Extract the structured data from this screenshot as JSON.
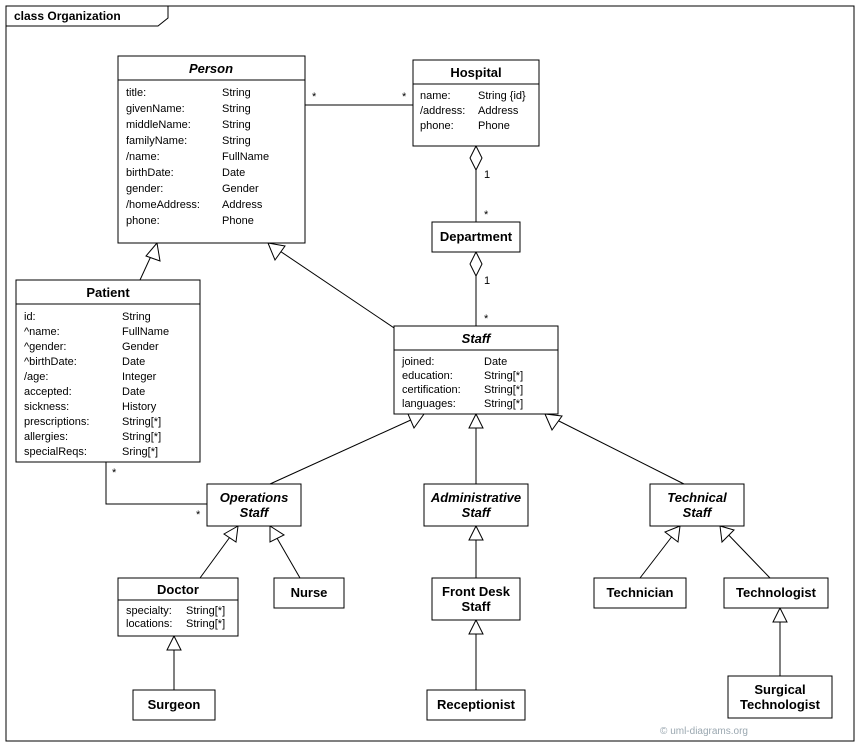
{
  "diagram": {
    "type": "uml-class-diagram",
    "frame_label": "class Organization",
    "background_color": "#ffffff",
    "stroke_color": "#000000",
    "text_color": "#000000",
    "watermark": "© uml-diagrams.org",
    "watermark_color": "#9aa7b0",
    "title_fontsize": 13,
    "attr_fontsize": 11,
    "mult_fontsize": 11,
    "classes": {
      "Person": {
        "name": "Person",
        "abstract": true,
        "attrs": [
          [
            "title:",
            "String"
          ],
          [
            "givenName:",
            "String"
          ],
          [
            "middleName:",
            "String"
          ],
          [
            "familyName:",
            "String"
          ],
          [
            "/name:",
            "FullName"
          ],
          [
            "birthDate:",
            "Date"
          ],
          [
            "gender:",
            "Gender"
          ],
          [
            "/homeAddress:",
            "Address"
          ],
          [
            "phone:",
            "Phone"
          ]
        ]
      },
      "Hospital": {
        "name": "Hospital",
        "attrs": [
          [
            "name:",
            "String {id}"
          ],
          [
            "/address:",
            "Address"
          ],
          [
            "phone:",
            "Phone"
          ]
        ]
      },
      "Department": {
        "name": "Department",
        "attrs": []
      },
      "Patient": {
        "name": "Patient",
        "attrs": [
          [
            "id:",
            "String"
          ],
          [
            "^name:",
            "FullName"
          ],
          [
            "^gender:",
            "Gender"
          ],
          [
            "^birthDate:",
            "Date"
          ],
          [
            "/age:",
            "Integer"
          ],
          [
            "accepted:",
            "Date"
          ],
          [
            "sickness:",
            "History"
          ],
          [
            "prescriptions:",
            "String[*]"
          ],
          [
            "allergies:",
            "String[*]"
          ],
          [
            "specialReqs:",
            "Sring[*]"
          ]
        ]
      },
      "Staff": {
        "name": "Staff",
        "abstract": true,
        "attrs": [
          [
            "joined:",
            "Date"
          ],
          [
            "education:",
            "String[*]"
          ],
          [
            "certification:",
            "String[*]"
          ],
          [
            "languages:",
            "String[*]"
          ]
        ]
      },
      "OperationsStaff": {
        "name": "Operations\nStaff",
        "abstract": true,
        "attrs": []
      },
      "AdministrativeStaff": {
        "name": "Administrative\nStaff",
        "abstract": true,
        "attrs": []
      },
      "TechnicalStaff": {
        "name": "Technical\nStaff",
        "abstract": true,
        "attrs": []
      },
      "Doctor": {
        "name": "Doctor",
        "attrs": [
          [
            "specialty:",
            "String[*]"
          ],
          [
            "locations:",
            "String[*]"
          ]
        ]
      },
      "Nurse": {
        "name": "Nurse",
        "attrs": []
      },
      "FrontDeskStaff": {
        "name": "Front Desk\nStaff",
        "attrs": []
      },
      "Receptionist": {
        "name": "Receptionist",
        "attrs": []
      },
      "Technician": {
        "name": "Technician",
        "attrs": []
      },
      "Technologist": {
        "name": "Technologist",
        "attrs": []
      },
      "Surgeon": {
        "name": "Surgeon",
        "attrs": []
      },
      "SurgicalTechnologist": {
        "name": "Surgical\nTechnologist",
        "attrs": []
      }
    },
    "multiplicities": {
      "person_hospital_left": "*",
      "person_hospital_right": "*",
      "hospital_department_top": "1",
      "hospital_department_bottom": "*",
      "department_staff_top": "1",
      "department_staff_bottom": "*",
      "patient_opstaff_left": "*",
      "patient_opstaff_right": "*"
    }
  }
}
